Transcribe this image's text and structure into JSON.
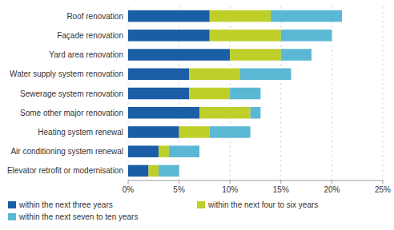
{
  "chart_data": {
    "type": "bar",
    "orientation": "horizontal",
    "stacked": true,
    "categories": [
      "Roof renovation",
      "Façade renovation",
      "Yard area renovation",
      "Water supply system renovation",
      "Sewerage system renovation",
      "Some other major renovation",
      "Heating system renewal",
      "Air conditioning system renewal",
      "Elevator retrofit or modernisation"
    ],
    "series": [
      {
        "name": "within the next three years",
        "color": "#1A5EA6",
        "values": [
          8,
          8,
          10,
          6,
          6,
          7,
          5,
          3,
          2
        ]
      },
      {
        "name": "within the next four to six years",
        "color": "#BFCF2A",
        "values": [
          6,
          7,
          5,
          5,
          4,
          5,
          3,
          1,
          1
        ]
      },
      {
        "name": "within the next seven to ten years",
        "color": "#5BB8D4",
        "values": [
          7,
          5,
          3,
          5,
          3,
          1,
          4,
          3,
          2
        ]
      }
    ],
    "xlim": [
      0,
      25
    ],
    "xticks": [
      {
        "value": 0,
        "label": "0%"
      },
      {
        "value": 5,
        "label": "5%"
      },
      {
        "value": 10,
        "label": "10%"
      },
      {
        "value": 15,
        "label": "15%"
      },
      {
        "value": 20,
        "label": "20%"
      },
      {
        "value": 25,
        "label": "25%"
      }
    ],
    "grid": true,
    "legend": "bottom"
  }
}
